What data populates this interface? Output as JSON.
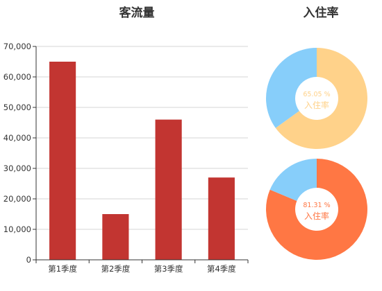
{
  "chart_data": [
    {
      "type": "bar",
      "title": "客流量",
      "categories": [
        "第1季度",
        "第2季度",
        "第3季度",
        "第4季度"
      ],
      "values": [
        65000,
        15000,
        46000,
        27000
      ],
      "ylim": [
        0,
        70000
      ],
      "ytick_step": 10000,
      "grid": true,
      "color": "#c23531"
    },
    {
      "type": "pie",
      "title": "入住率",
      "donuts": [
        {
          "percent_text": "65.05 %",
          "label": "入住率",
          "value": 65.05,
          "color": "#ffd28a",
          "rest_color": "#87cefa"
        },
        {
          "percent_text": "81.31 %",
          "label": "入住率",
          "value": 81.31,
          "color": "#ff7744",
          "rest_color": "#87cefa"
        }
      ]
    }
  ]
}
